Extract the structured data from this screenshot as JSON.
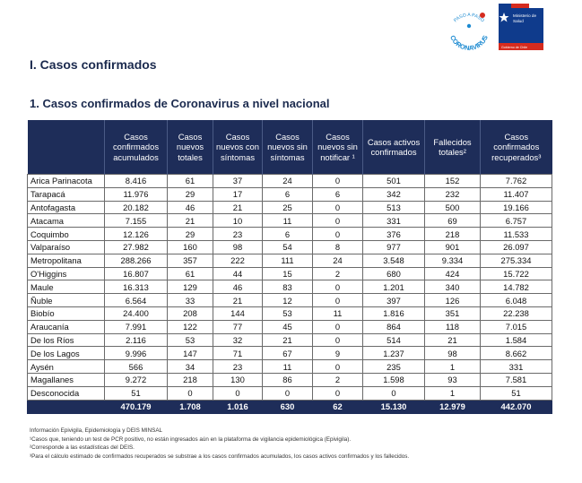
{
  "logos": {
    "campaign_text_top": "PASO A PASO",
    "campaign_text_main": "CORONAVIRUS",
    "ministry_line1": "Ministerio de",
    "ministry_line2": "Salud",
    "government": "Gobierno de Chile"
  },
  "heading1": "I.  Casos confirmados",
  "heading2": "1.  Casos confirmados de Coronavirus a nivel nacional",
  "table": {
    "headers": [
      "",
      "Casos confirmados acumulados",
      "Casos nuevos totales",
      "Casos nuevos con síntomas",
      "Casos nuevos sin síntomas",
      "Casos nuevos sin notificar ¹",
      "Casos activos confirmados",
      "Fallecidos totales²",
      "Casos confirmados recuperados³"
    ],
    "rows": [
      [
        "Arica Parinacota",
        "8.416",
        "61",
        "37",
        "24",
        "0",
        "501",
        "152",
        "7.762"
      ],
      [
        "Tarapacá",
        "11.976",
        "29",
        "17",
        "6",
        "6",
        "342",
        "232",
        "11.407"
      ],
      [
        "Antofagasta",
        "20.182",
        "46",
        "21",
        "25",
        "0",
        "513",
        "500",
        "19.166"
      ],
      [
        "Atacama",
        "7.155",
        "21",
        "10",
        "11",
        "0",
        "331",
        "69",
        "6.757"
      ],
      [
        "Coquimbo",
        "12.126",
        "29",
        "23",
        "6",
        "0",
        "376",
        "218",
        "11.533"
      ],
      [
        "Valparaíso",
        "27.982",
        "160",
        "98",
        "54",
        "8",
        "977",
        "901",
        "26.097"
      ],
      [
        "Metropolitana",
        "288.266",
        "357",
        "222",
        "111",
        "24",
        "3.548",
        "9.334",
        "275.334"
      ],
      [
        "O'Higgins",
        "16.807",
        "61",
        "44",
        "15",
        "2",
        "680",
        "424",
        "15.722"
      ],
      [
        "Maule",
        "16.313",
        "129",
        "46",
        "83",
        "0",
        "1.201",
        "340",
        "14.782"
      ],
      [
        "Ñuble",
        "6.564",
        "33",
        "21",
        "12",
        "0",
        "397",
        "126",
        "6.048"
      ],
      [
        "Biobío",
        "24.400",
        "208",
        "144",
        "53",
        "11",
        "1.816",
        "351",
        "22.238"
      ],
      [
        "Araucanía",
        "7.991",
        "122",
        "77",
        "45",
        "0",
        "864",
        "118",
        "7.015"
      ],
      [
        "De los Ríos",
        "2.116",
        "53",
        "32",
        "21",
        "0",
        "514",
        "21",
        "1.584"
      ],
      [
        "De los Lagos",
        "9.996",
        "147",
        "71",
        "67",
        "9",
        "1.237",
        "98",
        "8.662"
      ],
      [
        "Aysén",
        "566",
        "34",
        "23",
        "11",
        "0",
        "235",
        "1",
        "331"
      ],
      [
        "Magallanes",
        "9.272",
        "218",
        "130",
        "86",
        "2",
        "1.598",
        "93",
        "7.581"
      ],
      [
        "Desconocida",
        "51",
        "0",
        "0",
        "0",
        "0",
        "0",
        "1",
        "51"
      ]
    ],
    "total": [
      "",
      "470.179",
      "1.708",
      "1.016",
      "630",
      "62",
      "15.130",
      "12.979",
      "442.070"
    ]
  },
  "footnotes": [
    "Información Epivigila, Epidemiología y DEIS MINSAL",
    "¹Casos que, teniendo un test de PCR positivo, no están ingresados aún en la plataforma de vigilancia epidemiológica (Epivigila).",
    "²Corresponde a las estadísticas del DEIS.",
    "³Para el cálculo estimado de confirmados recuperados se substrae a los casos confirmados acumulados, los casos activos confirmados y los fallecidos."
  ],
  "colors": {
    "header_bg": "#1e2d59",
    "campaign_blue": "#1c8ad1",
    "gov_red": "#d52b1e",
    "gov_blue": "#0f3b8c"
  }
}
